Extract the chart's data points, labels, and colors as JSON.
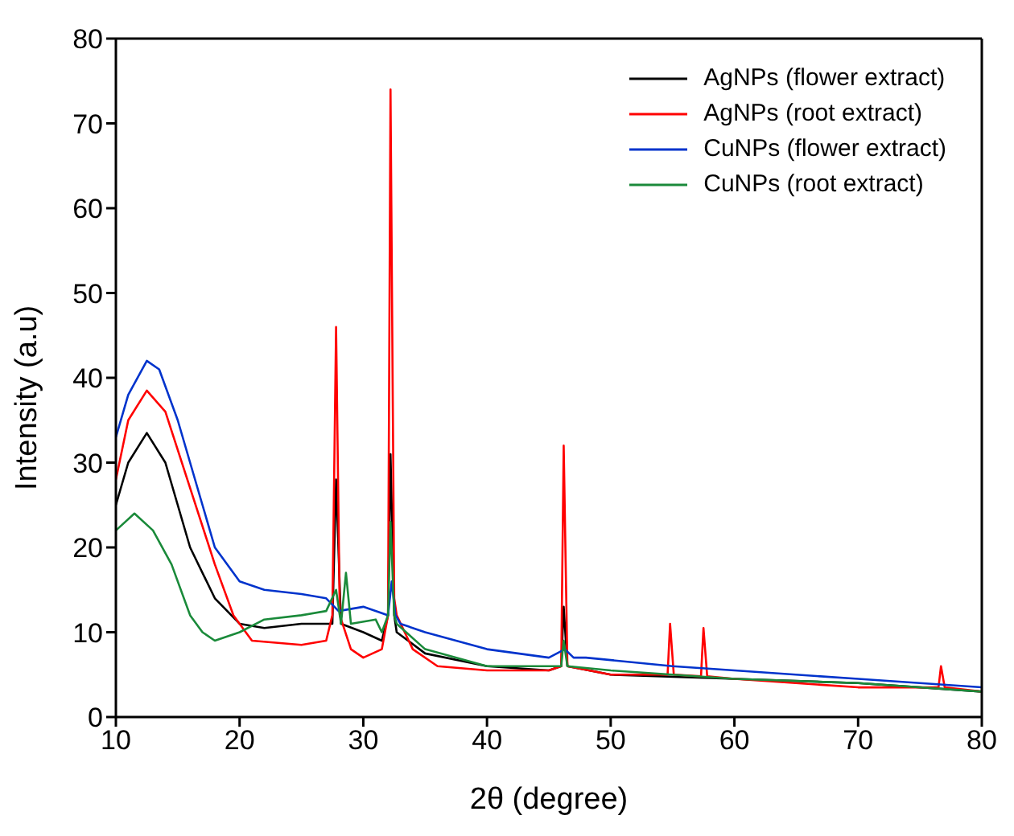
{
  "chart_data": {
    "type": "line",
    "xlabel": "2θ (degree)",
    "ylabel": "Intensity (a.u)",
    "xlim": [
      10,
      80
    ],
    "xticks": [
      10,
      20,
      30,
      40,
      50,
      60,
      70,
      80
    ],
    "ylim": [
      0,
      80
    ],
    "yticks": [
      0,
      10,
      20,
      30,
      40,
      50,
      60,
      70,
      80
    ],
    "grid": false,
    "legend": "top right",
    "marker": "none",
    "line_style": "solid",
    "series": [
      {
        "name": "AgNPs (flower extract)",
        "color": "#000000",
        "x": [
          10,
          11,
          12.5,
          14,
          16,
          18,
          20,
          22,
          25,
          27,
          27.5,
          27.8,
          28.2,
          30,
          31.5,
          32,
          32.2,
          32.5,
          32.7,
          35,
          40,
          45,
          46,
          46.2,
          46.5,
          50,
          60,
          70,
          80
        ],
        "values": [
          25,
          30,
          33.5,
          30,
          20,
          14,
          11,
          10.5,
          11,
          11,
          11,
          28,
          11,
          10,
          9,
          12,
          31,
          12,
          10,
          7.5,
          6,
          5.5,
          6,
          13,
          6,
          5,
          4.5,
          4,
          3
        ]
      },
      {
        "name": "AgNPs (root extract)",
        "color": "#ff0000",
        "x": [
          10,
          11,
          12.5,
          14,
          16,
          18,
          19.5,
          21,
          25,
          27,
          27.5,
          27.8,
          28.1,
          29,
          30,
          31.5,
          32,
          32.2,
          32.5,
          32.7,
          34,
          36,
          40,
          45,
          46,
          46.2,
          46.5,
          50,
          54.6,
          54.8,
          55.1,
          57.3,
          57.5,
          57.8,
          60,
          70,
          76.5,
          76.7,
          77,
          80
        ],
        "values": [
          28,
          35,
          38.5,
          36,
          27,
          18,
          12,
          9,
          8.5,
          9,
          12,
          46,
          12,
          8,
          7,
          8,
          12,
          74,
          14,
          12,
          8,
          6,
          5.5,
          5.5,
          6,
          32,
          6,
          5,
          5,
          11,
          5,
          4.8,
          10.5,
          4.8,
          4.5,
          3.5,
          3.5,
          6,
          3.5,
          3
        ]
      },
      {
        "name": "CuNPs (flower extract)",
        "color": "#0033cc",
        "x": [
          10,
          11,
          12.5,
          13.5,
          15,
          17,
          18,
          20,
          22,
          25,
          27,
          28,
          30,
          32,
          32.3,
          32.6,
          33,
          35,
          40,
          45,
          46.3,
          47,
          48,
          55,
          60,
          70,
          80
        ],
        "values": [
          33,
          38,
          42,
          41,
          35,
          25,
          20,
          16,
          15,
          14.5,
          14,
          12.5,
          13,
          12,
          16,
          12,
          11,
          10,
          8,
          7,
          8,
          7,
          7,
          6,
          5.5,
          4.5,
          3.5
        ]
      },
      {
        "name": "CuNPs (root extract)",
        "color": "#1a8a3a",
        "x": [
          10,
          11.5,
          13,
          14.5,
          16,
          17,
          18,
          20,
          22,
          25,
          27,
          27.8,
          28.2,
          28.6,
          29,
          31,
          31.5,
          32,
          32.2,
          32.5,
          32.7,
          35,
          40,
          46,
          46.2,
          46.5,
          50,
          60,
          70,
          80
        ],
        "values": [
          22,
          24,
          22,
          18,
          12,
          10,
          9,
          10,
          11.5,
          12,
          12.5,
          15,
          11,
          17,
          11,
          11.5,
          10,
          12,
          23,
          12,
          11,
          8,
          6,
          6,
          9,
          6,
          5.5,
          4.5,
          4,
          3
        ]
      }
    ]
  }
}
